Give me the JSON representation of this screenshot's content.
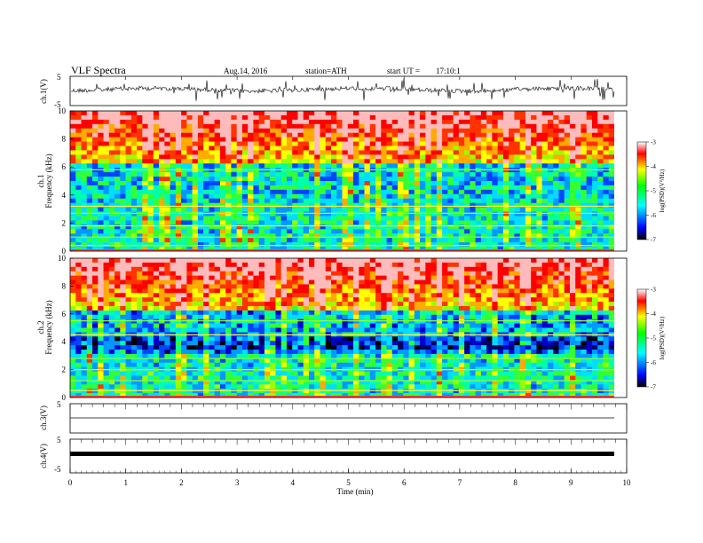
{
  "header": {
    "title": "VLF Spectra",
    "date": "Aug.14, 2016",
    "station": "station=ATH",
    "start_label": "start UT =",
    "start_time": "17:10:1"
  },
  "chart_data": [
    {
      "type": "line",
      "ylabel": "ch.1(V)",
      "yticks": [
        "5",
        "-5"
      ],
      "ylim": [
        -5,
        5
      ],
      "description_series": "fluctuating waveform near 0 V with frequent spikes",
      "x_range_min": [
        0,
        9.8
      ]
    },
    {
      "type": "heatmap",
      "ylabel": "ch.1\nFrequency (kHz)",
      "ylabel_lines": [
        "ch.1",
        "Frequency (kHz)"
      ],
      "yticks": [
        "0",
        "2",
        "4",
        "6",
        "8",
        "10"
      ],
      "ylim": [
        0,
        10
      ],
      "colorbar": {
        "label": "log(PSD)(V²/Hz)",
        "ticks": [
          "-3",
          "-4",
          "-5",
          "-6",
          "-7"
        ],
        "range": [
          -7,
          -3
        ],
        "colors": [
          "#000000",
          "#0000ff",
          "#00ffff",
          "#00ff00",
          "#ffff00",
          "#ff0000",
          "#ffffff"
        ]
      }
    },
    {
      "type": "heatmap",
      "ylabel_lines": [
        "ch.2",
        "Frequency (kHz)"
      ],
      "yticks": [
        "0",
        "2",
        "4",
        "6",
        "8",
        "10"
      ],
      "ylim": [
        0,
        10
      ],
      "colorbar": {
        "label": "log(PSD)(V²/Hz)",
        "ticks": [
          "-3",
          "-4",
          "-5",
          "-6",
          "-7"
        ],
        "range": [
          -7,
          -3
        ]
      }
    },
    {
      "type": "line",
      "ylabel": "ch.3(V)",
      "yticks": [
        "5"
      ],
      "ylim": [
        -5,
        5
      ],
      "values_constant": 0
    },
    {
      "type": "line",
      "ylabel": "ch.4(V)",
      "yticks": [
        "5",
        "-5"
      ],
      "ylim": [
        -5,
        5
      ],
      "values_constant": 0
    }
  ],
  "xaxis": {
    "label": "Time (min)",
    "ticks": [
      "0",
      "1",
      "2",
      "3",
      "4",
      "5",
      "6",
      "7",
      "8",
      "9",
      "10"
    ],
    "range": [
      0,
      10
    ]
  }
}
